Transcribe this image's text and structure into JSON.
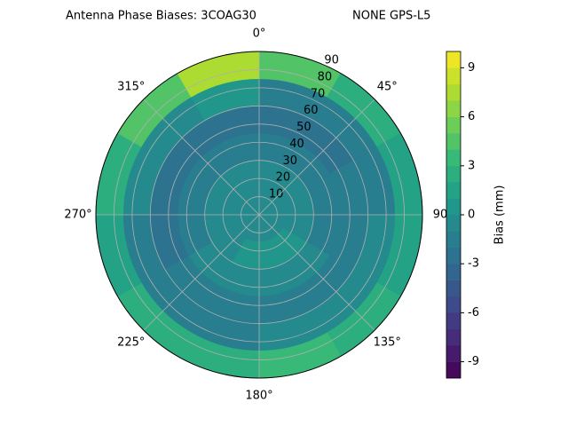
{
  "chart_data": {
    "type": "polar_contour",
    "title": "Antenna Phase Biases: 3COAG30",
    "subtitle": "NONE GPS-L5",
    "colormap": "viridis",
    "clim": [
      -10,
      10
    ],
    "colorbar_ticks": [
      -9,
      -6,
      -3,
      0,
      3,
      6,
      9
    ],
    "colorbar_label": "Bias (mm)",
    "rlim": [
      0,
      90
    ],
    "rticks": [
      10,
      20,
      30,
      40,
      50,
      60,
      70,
      80,
      90
    ],
    "angle_ticks": [
      {
        "value": 0,
        "label": "0°"
      },
      {
        "value": 45,
        "label": "45°"
      },
      {
        "value": 90,
        "label": "90"
      },
      {
        "value": 135,
        "label": "135°"
      },
      {
        "value": 180,
        "label": "180°"
      },
      {
        "value": 225,
        "label": "225°"
      },
      {
        "value": 270,
        "label": "270°"
      },
      {
        "value": 315,
        "label": "315°"
      }
    ],
    "grid": true,
    "azimuth_edges": [
      0,
      30,
      60,
      90,
      120,
      150,
      180,
      210,
      240,
      270,
      300,
      330,
      360
    ],
    "zenith_edges": [
      0,
      15,
      30,
      45,
      60,
      75,
      90
    ],
    "values": [
      [
        -1,
        -1,
        -1,
        -1,
        -1,
        -1,
        -1,
        -1,
        -1,
        -1,
        -1,
        -1
      ],
      [
        -1,
        -1,
        -1,
        -1,
        0,
        0,
        0,
        -1,
        -1,
        -1,
        -1,
        -1
      ],
      [
        -2,
        -2,
        -2,
        -2,
        -1,
        -1,
        -1,
        -1,
        -2,
        -2,
        -2,
        -2
      ],
      [
        -3,
        -3,
        -2,
        -2,
        -2,
        -2,
        -2,
        -2,
        -3,
        -3,
        -3,
        -3
      ],
      [
        -2,
        -2,
        -2,
        -1,
        -1,
        -1,
        -2,
        -2,
        -2,
        -1,
        -1,
        0
      ],
      [
        4,
        2,
        1,
        1,
        2,
        3,
        2,
        2,
        1,
        2,
        4,
        7
      ]
    ]
  }
}
